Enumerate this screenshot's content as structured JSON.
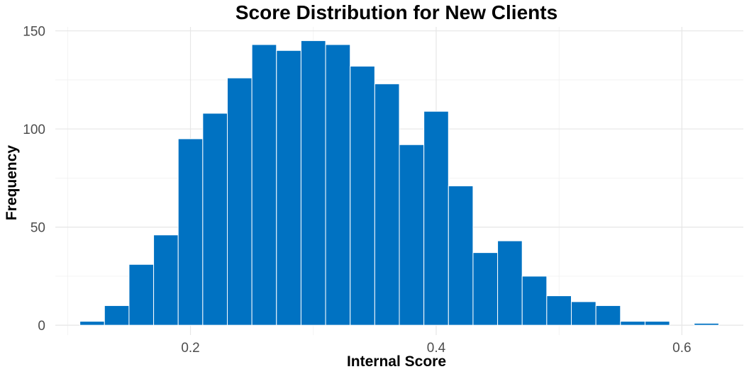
{
  "chart_data": {
    "type": "bar",
    "subtype": "histogram",
    "title": "Score Distribution for New Clients",
    "xlabel": "Internal Score",
    "ylabel": "Frequency",
    "bar_color": "#0072C2",
    "bin_width": 0.02,
    "bins": [
      {
        "start": 0.11,
        "end": 0.13,
        "count": 2
      },
      {
        "start": 0.13,
        "end": 0.15,
        "count": 10
      },
      {
        "start": 0.15,
        "end": 0.17,
        "count": 31
      },
      {
        "start": 0.17,
        "end": 0.19,
        "count": 46
      },
      {
        "start": 0.19,
        "end": 0.21,
        "count": 95
      },
      {
        "start": 0.21,
        "end": 0.23,
        "count": 108
      },
      {
        "start": 0.23,
        "end": 0.25,
        "count": 126
      },
      {
        "start": 0.25,
        "end": 0.27,
        "count": 143
      },
      {
        "start": 0.27,
        "end": 0.29,
        "count": 140
      },
      {
        "start": 0.29,
        "end": 0.31,
        "count": 145
      },
      {
        "start": 0.31,
        "end": 0.33,
        "count": 143
      },
      {
        "start": 0.33,
        "end": 0.35,
        "count": 132
      },
      {
        "start": 0.35,
        "end": 0.37,
        "count": 123
      },
      {
        "start": 0.37,
        "end": 0.39,
        "count": 92
      },
      {
        "start": 0.39,
        "end": 0.41,
        "count": 109
      },
      {
        "start": 0.41,
        "end": 0.43,
        "count": 71
      },
      {
        "start": 0.43,
        "end": 0.45,
        "count": 37
      },
      {
        "start": 0.45,
        "end": 0.47,
        "count": 43
      },
      {
        "start": 0.47,
        "end": 0.49,
        "count": 25
      },
      {
        "start": 0.49,
        "end": 0.51,
        "count": 15
      },
      {
        "start": 0.51,
        "end": 0.53,
        "count": 12
      },
      {
        "start": 0.53,
        "end": 0.55,
        "count": 10
      },
      {
        "start": 0.55,
        "end": 0.57,
        "count": 2
      },
      {
        "start": 0.57,
        "end": 0.59,
        "count": 2
      },
      {
        "start": 0.59,
        "end": 0.61,
        "count": 0
      },
      {
        "start": 0.61,
        "end": 0.63,
        "count": 1
      }
    ],
    "xlim": [
      0.09,
      0.65
    ],
    "ylim": [
      -5,
      152
    ],
    "x_ticks": [
      {
        "value": 0.2,
        "label": "0.2"
      },
      {
        "value": 0.4,
        "label": "0.4"
      },
      {
        "value": 0.6,
        "label": "0.6"
      }
    ],
    "y_ticks": [
      {
        "value": 0,
        "label": "0"
      },
      {
        "value": 50,
        "label": "50"
      },
      {
        "value": 100,
        "label": "100"
      },
      {
        "value": 150,
        "label": "150"
      }
    ],
    "grid": true,
    "legend": false
  }
}
